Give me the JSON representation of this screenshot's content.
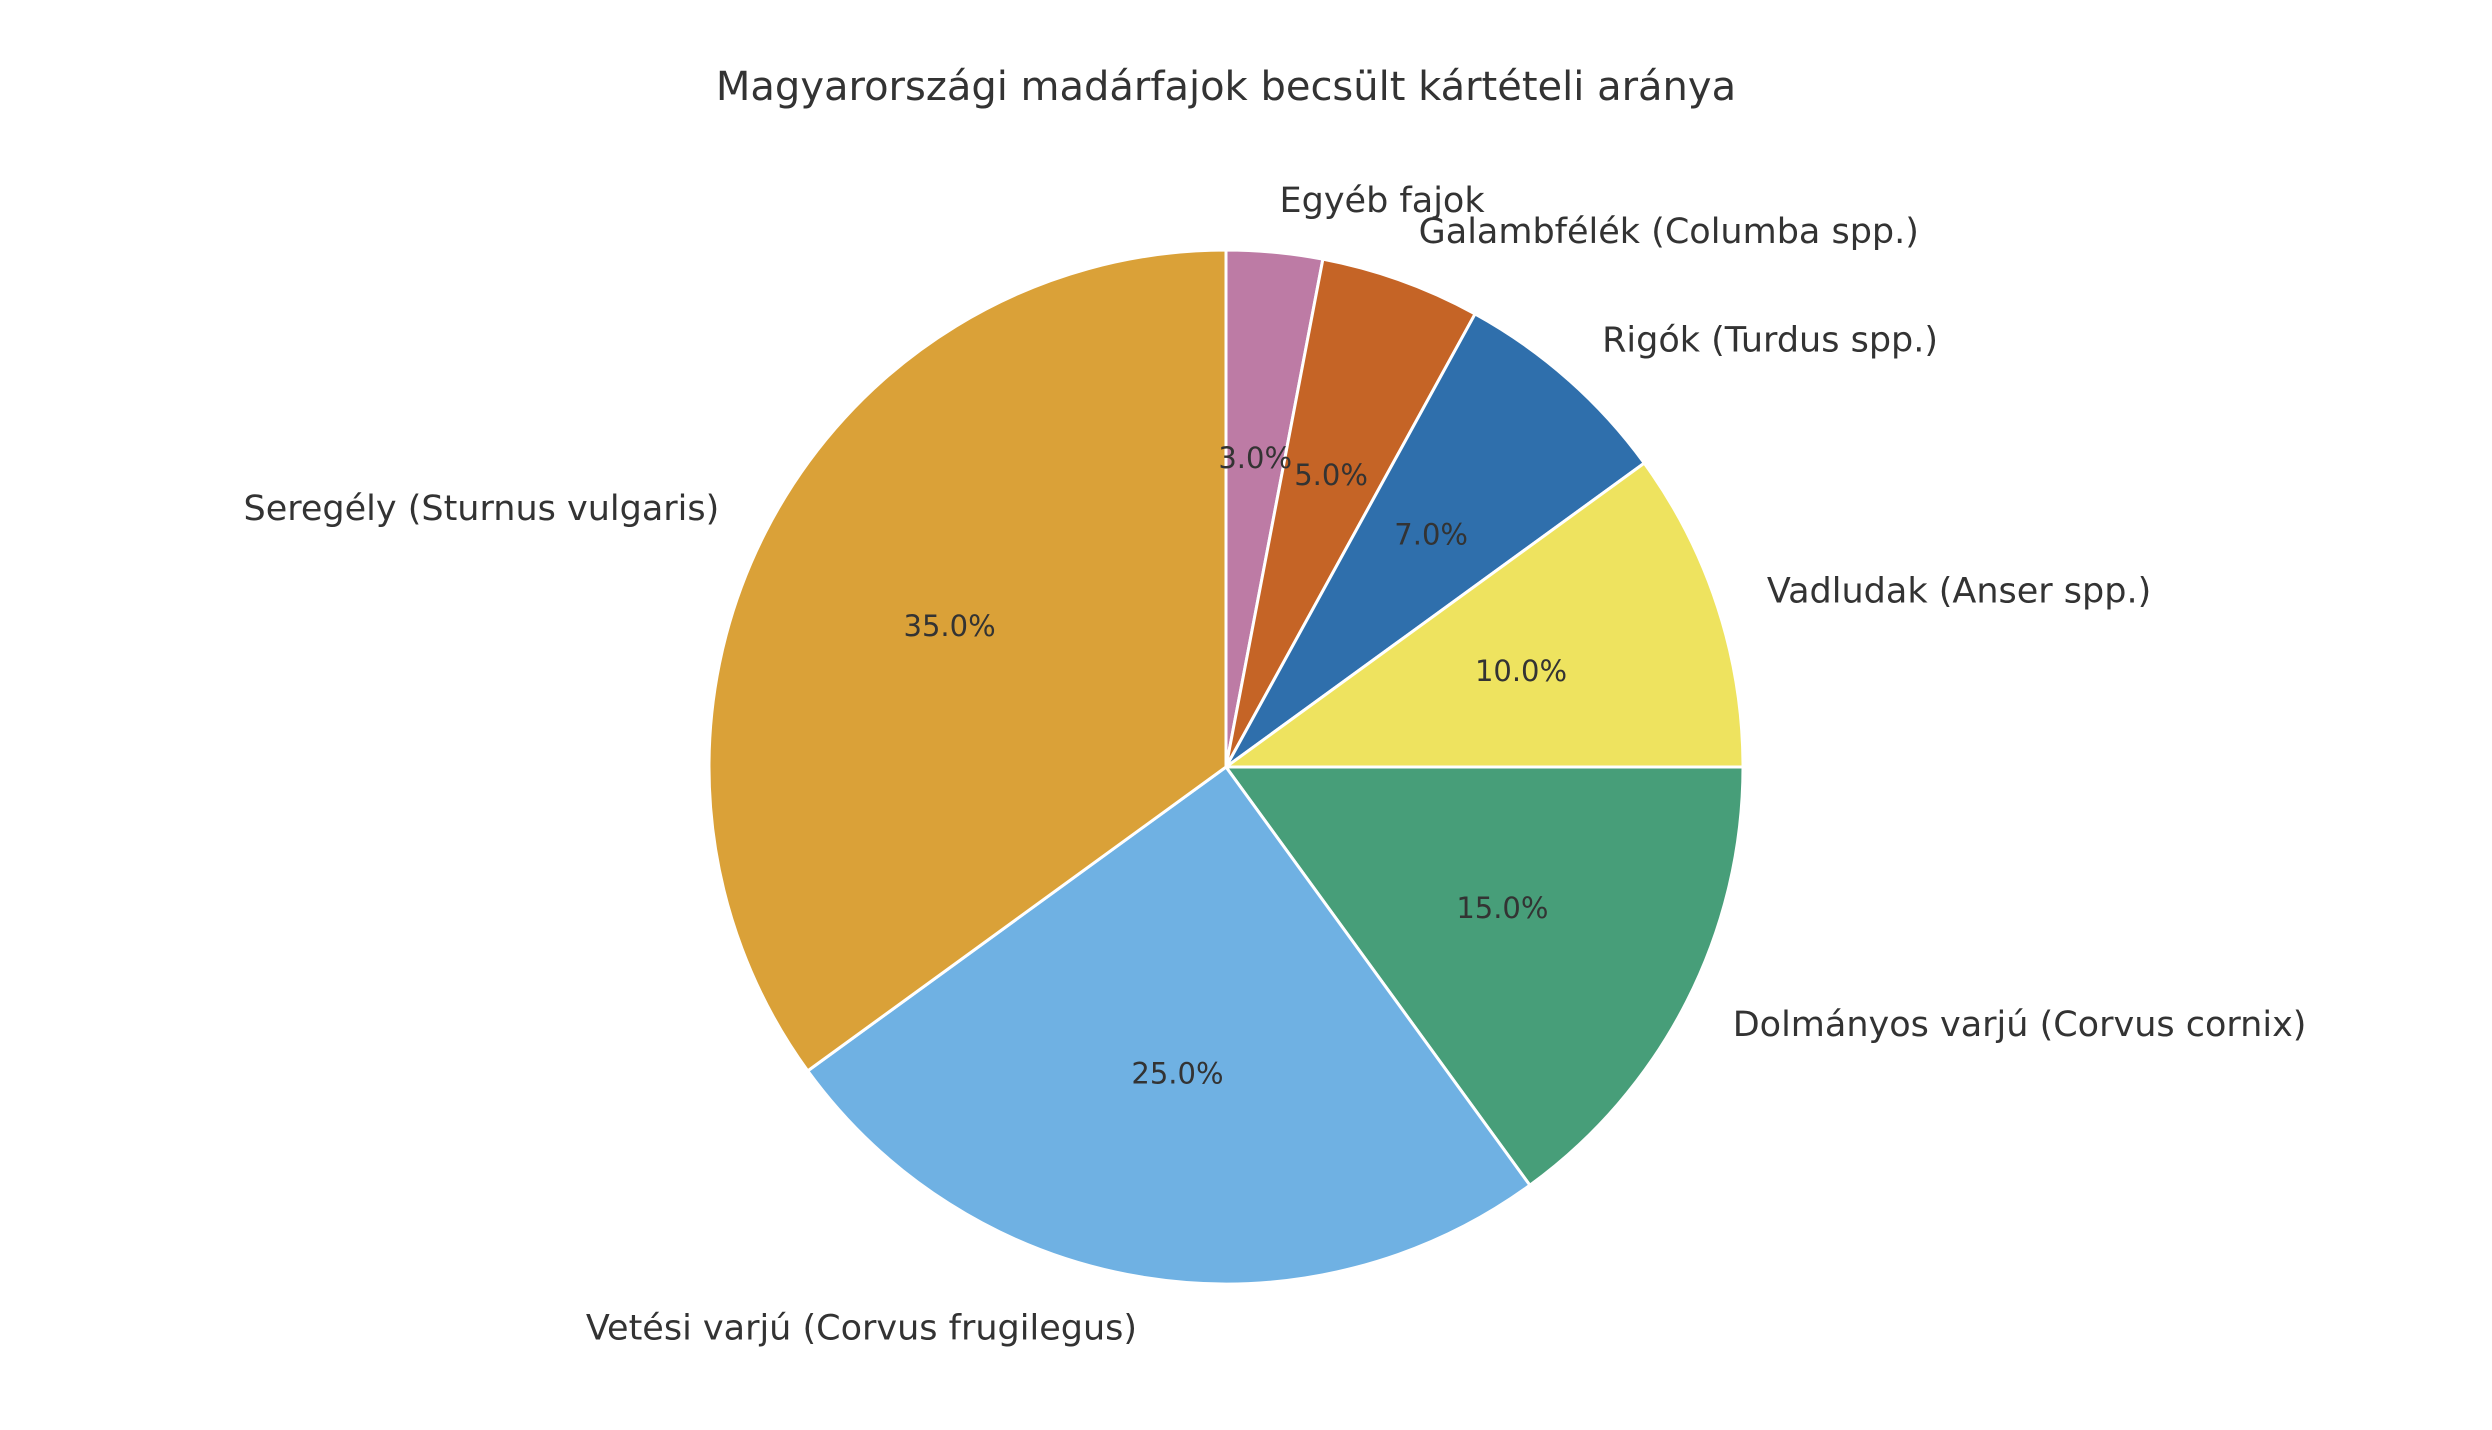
{
  "chart_data": {
    "type": "pie",
    "title": "Magyarországi madárfajok becsült kártételi aránya",
    "start_angle_deg": 90,
    "direction": "clockwise",
    "slices": [
      {
        "label": "Egyéb fajok",
        "value": 3.0,
        "pct_label": "3.0%",
        "color": "#BD7BA5"
      },
      {
        "label": "Galambfélék (Columba spp.)",
        "value": 5.0,
        "pct_label": "5.0%",
        "color": "#C56426"
      },
      {
        "label": "Rigók (Turdus spp.)",
        "value": 7.0,
        "pct_label": "7.0%",
        "color": "#2F6FAC"
      },
      {
        "label": "Vadludak (Anser spp.)",
        "value": 10.0,
        "pct_label": "10.0%",
        "color": "#EEE35F"
      },
      {
        "label": "Dolmányos varjú (Corvus cornix)",
        "value": 15.0,
        "pct_label": "15.0%",
        "color": "#479E79"
      },
      {
        "label": "Vetési varjú (Corvus frugilegus)",
        "value": 25.0,
        "pct_label": "25.0%",
        "color": "#6FB1E3"
      },
      {
        "label": "Seregély (Sturnus vulgaris)",
        "value": 35.0,
        "pct_label": "35.0%",
        "color": "#DAA138"
      }
    ]
  }
}
